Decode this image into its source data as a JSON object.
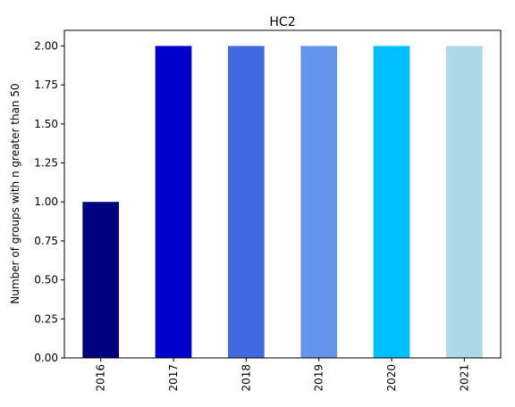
{
  "chart_data": {
    "type": "bar",
    "title": "HC2",
    "xlabel": "",
    "ylabel": "Number of groups with n greater than 50",
    "categories": [
      "2016",
      "2017",
      "2018",
      "2019",
      "2020",
      "2021"
    ],
    "values": [
      1,
      2,
      2,
      2,
      2,
      2
    ],
    "colors": [
      "#000080",
      "#0000cd",
      "#4169e1",
      "#6495ed",
      "#00bfff",
      "#add8e6"
    ],
    "ylim": [
      0,
      2.1
    ],
    "yticks": [
      0.0,
      0.25,
      0.5,
      0.75,
      1.0,
      1.25,
      1.5,
      1.75,
      2.0
    ],
    "ytick_labels": [
      "0.00",
      "0.25",
      "0.50",
      "0.75",
      "1.00",
      "1.25",
      "1.50",
      "1.75",
      "2.00"
    ],
    "grid": false,
    "legend": "none"
  }
}
